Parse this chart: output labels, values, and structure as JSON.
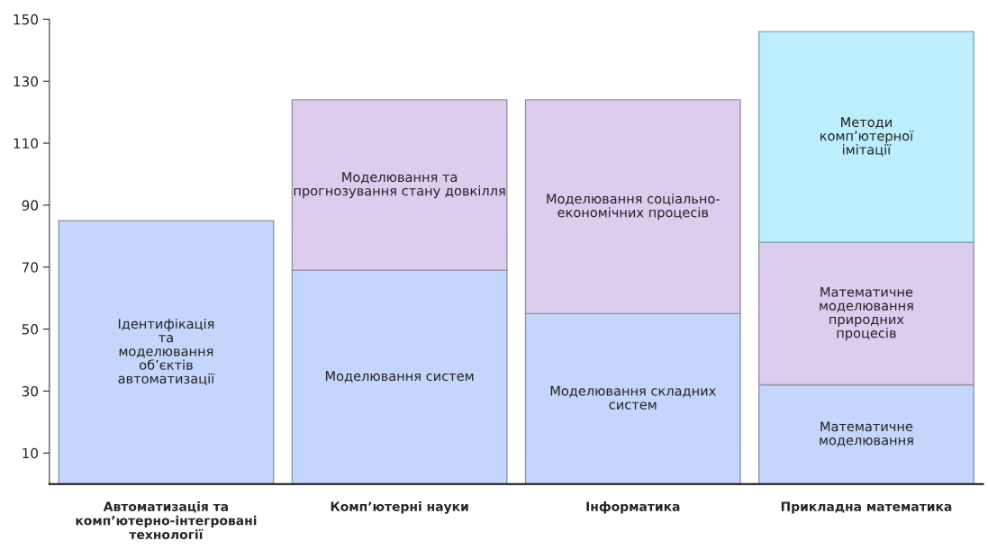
{
  "chart_data": {
    "type": "bar",
    "stacked": true,
    "categories": [
      "Автоматизація та\nкомп’ютерно-інтегровані\nтехнології",
      "Комп’ютерні науки",
      "Інформатика",
      "Прикладна математика"
    ],
    "series": [
      {
        "color": "#c4d6fb",
        "values": [
          85,
          69,
          55,
          32
        ],
        "value_labels": [
          "Ідентифікація\nта\nмоделювання\nоб’єктів\nавтоматизації",
          "Моделювання систем",
          "Моделювання складних\nсистем",
          "Математичне\nмоделювання"
        ]
      },
      {
        "color": "#dccdef",
        "values": [
          null,
          55,
          69,
          46
        ],
        "value_labels": [
          null,
          "Моделювання та\nпрогнозування стану довкілля",
          "Моделювання соціально-\nекономічних процесів",
          "Математичне\nмоделювання\nприродних\nпроцесів"
        ]
      },
      {
        "color": "#bdeefb",
        "values": [
          null,
          null,
          null,
          68
        ],
        "value_labels": [
          null,
          null,
          null,
          "Методи\nкомп’ютерної\nімітації"
        ]
      }
    ],
    "ylim": [
      0,
      150
    ],
    "yticks": [
      10,
      30,
      50,
      70,
      90,
      110,
      130,
      150
    ],
    "grid": false,
    "legend": false
  }
}
